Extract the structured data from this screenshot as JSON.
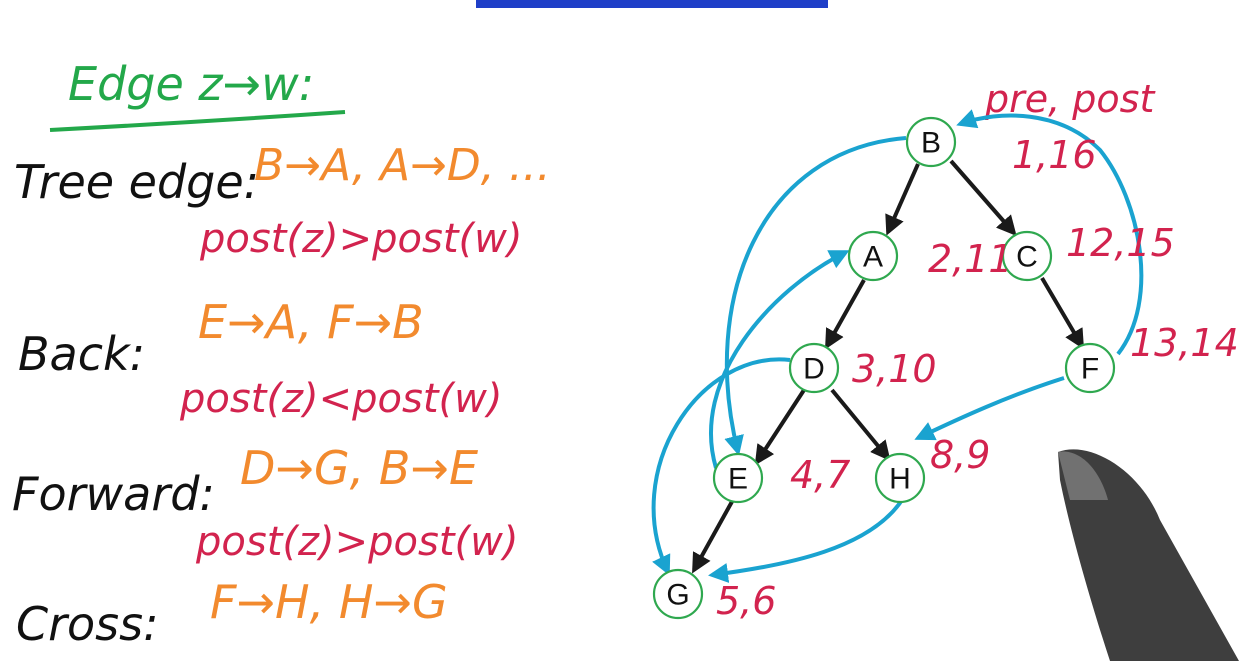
{
  "heading": "Edge z→w:",
  "colors": {
    "black": "#111111",
    "orange": "#f28a2e",
    "red": "#d2234e",
    "green": "#23a84a",
    "cyan": "#1aa3d0",
    "node_outline": "#2fa84f",
    "title_bar": "#1f3fc8"
  },
  "edge_types": [
    {
      "label": "Tree edge:",
      "examples": "B→A, A→D, ...",
      "condition": "post(z)>post(w)"
    },
    {
      "label": "Back:",
      "examples": "E→A, F→B",
      "condition": "post(z)<post(w)"
    },
    {
      "label": "Forward:",
      "examples": "D→G, B→E",
      "condition": "post(z)>post(w)"
    },
    {
      "label": "Cross:",
      "examples": "F→H, H→G",
      "condition": ""
    }
  ],
  "graph": {
    "legend": "pre, post",
    "nodes": [
      {
        "id": "B",
        "label": "B",
        "numbers": "1,16"
      },
      {
        "id": "A",
        "label": "A",
        "numbers": "2,11"
      },
      {
        "id": "C",
        "label": "C",
        "numbers": "12,15"
      },
      {
        "id": "D",
        "label": "D",
        "numbers": "3,10"
      },
      {
        "id": "F",
        "label": "F",
        "numbers": "13,14"
      },
      {
        "id": "E",
        "label": "E",
        "numbers": "4,7"
      },
      {
        "id": "H",
        "label": "H",
        "numbers": "8,9"
      },
      {
        "id": "G",
        "label": "G",
        "numbers": "5,6"
      }
    ],
    "tree_edges": [
      [
        "B",
        "A"
      ],
      [
        "B",
        "C"
      ],
      [
        "A",
        "D"
      ],
      [
        "C",
        "F"
      ],
      [
        "D",
        "E"
      ],
      [
        "D",
        "H"
      ],
      [
        "E",
        "G"
      ]
    ],
    "other_edges": [
      [
        "B",
        "E"
      ],
      [
        "E",
        "A"
      ],
      [
        "F",
        "B"
      ],
      [
        "D",
        "G"
      ],
      [
        "F",
        "H"
      ],
      [
        "H",
        "G"
      ]
    ]
  }
}
